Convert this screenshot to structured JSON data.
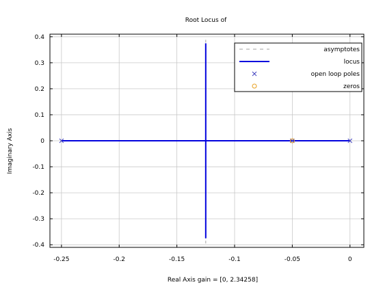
{
  "chart_data": {
    "type": "line",
    "title": "Root Locus of",
    "xlabel": "Real Axis gain = [0, 2.34258]",
    "ylabel": "Imaginary Axis",
    "xlim": [
      -0.26,
      0.012
    ],
    "ylim": [
      -0.41,
      0.41
    ],
    "grid": true,
    "legend_position": "top-right",
    "x_ticks": [
      -0.25,
      -0.2,
      -0.15,
      -0.1,
      -0.05,
      0
    ],
    "x_tick_labels": [
      "-0.25",
      "-0.2",
      "-0.15",
      "-0.1",
      "-0.05",
      "0"
    ],
    "y_ticks": [
      0.4,
      0.3,
      0.2,
      0.1,
      0,
      -0.1,
      -0.2,
      -0.3,
      -0.4
    ],
    "y_tick_labels": [
      "0.4",
      "0.3",
      "0.2",
      "0.1",
      "0",
      "-0.1",
      "-0.2",
      "-0.3",
      "-0.4"
    ],
    "series": [
      {
        "name": "asymptotes",
        "style": "dashed",
        "color": "#a0a0a0",
        "segments": [
          [
            [
              -0.125,
              -0.395
            ],
            [
              -0.125,
              0.395
            ]
          ]
        ]
      },
      {
        "name": "locus",
        "style": "solid",
        "color": "#0000dd",
        "segments": [
          [
            [
              -0.25,
              0
            ],
            [
              0,
              0
            ]
          ],
          [
            [
              -0.125,
              -0.375
            ],
            [
              -0.125,
              0.375
            ]
          ]
        ]
      },
      {
        "name": "open loop poles",
        "marker": "x",
        "color": "#4040c0",
        "points": [
          [
            -0.25,
            0
          ],
          [
            -0.05,
            0
          ],
          [
            0,
            0
          ]
        ]
      },
      {
        "name": "zeros",
        "marker": "o",
        "color": "#e8a020",
        "points": [
          [
            -0.05,
            0
          ]
        ]
      }
    ]
  }
}
